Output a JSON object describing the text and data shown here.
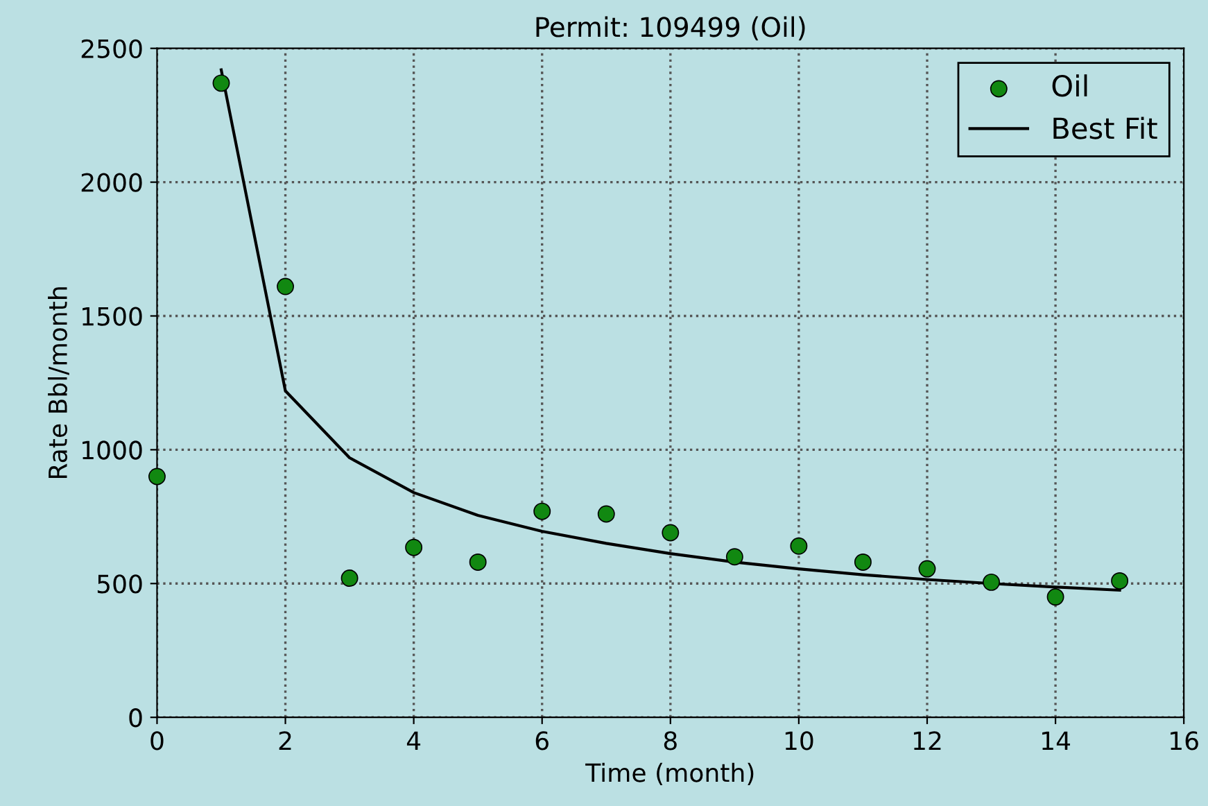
{
  "chart_data": {
    "type": "scatter",
    "title": "Permit: 109499 (Oil)",
    "xlabel": "Time (month)",
    "ylabel": "Rate Bbl/month",
    "series": [
      {
        "name": "Oil",
        "color": "#118811",
        "marker": "circle",
        "x": [
          0,
          1,
          2,
          3,
          4,
          5,
          6,
          7,
          8,
          9,
          10,
          11,
          12,
          13,
          14,
          15
        ],
        "values": [
          900,
          2370,
          1610,
          520,
          635,
          580,
          770,
          760,
          690,
          600,
          640,
          580,
          555,
          505,
          450,
          510
        ]
      },
      {
        "name": "Best Fit",
        "type": "line",
        "color": "#000000",
        "line_style": "solid",
        "x": [
          1,
          2,
          3,
          4,
          5,
          6,
          7,
          8,
          9,
          10,
          11,
          12,
          13,
          14,
          15
        ],
        "values": [
          2420,
          1220,
          970,
          840,
          755,
          695,
          650,
          612,
          580,
          555,
          533,
          515,
          500,
          487,
          475
        ]
      }
    ],
    "xlim": [
      0,
      16
    ],
    "xticks": [
      0,
      2,
      4,
      6,
      8,
      10,
      12,
      14,
      16
    ],
    "ylim": [
      0,
      2500
    ],
    "yticks": [
      0,
      500,
      1000,
      1500,
      2000,
      2500
    ],
    "grid": true,
    "legend": "top right"
  }
}
